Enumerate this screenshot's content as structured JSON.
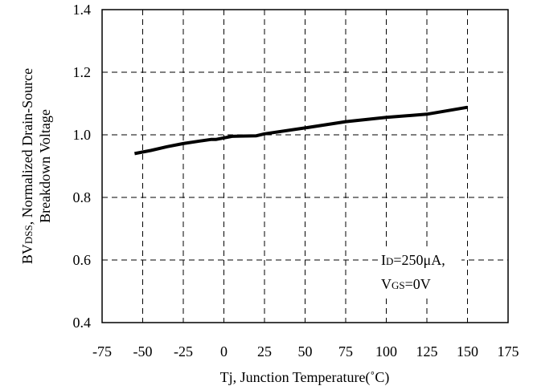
{
  "chart_data": {
    "type": "line",
    "xlim": [
      -75,
      175
    ],
    "ylim": [
      0.4,
      1.4
    ],
    "x_ticks": [
      "-75",
      "-50",
      "-25",
      "0",
      "25",
      "50",
      "75",
      "100",
      "125",
      "150",
      "175"
    ],
    "y_ticks": [
      "0.4",
      "0.6",
      "0.8",
      "1.0",
      "1.2",
      "1.4"
    ],
    "xlabel": "Tj, Junction Temperature(˚C)",
    "ylabel_line1": {
      "main": "BV",
      "sub": "DSS",
      "rest": ", Normalized Drain-Source"
    },
    "ylabel_line2": "Breakdown Voltage",
    "grid": true,
    "annotations": {
      "line1": {
        "main": "I",
        "sub": "D",
        "rest": "=250μA,"
      },
      "line2": {
        "main": "V",
        "sub": "GS",
        "rest": "=0V"
      }
    },
    "series": [
      {
        "x": [
          -55,
          -45,
          -35,
          -25,
          -15,
          -8,
          -5,
          5,
          10,
          20,
          25,
          50,
          75,
          100,
          125,
          150
        ],
        "values": [
          0.94,
          0.95,
          0.962,
          0.972,
          0.98,
          0.985,
          0.985,
          0.995,
          0.996,
          0.997,
          1.003,
          1.022,
          1.042,
          1.056,
          1.066,
          1.088
        ]
      }
    ]
  }
}
